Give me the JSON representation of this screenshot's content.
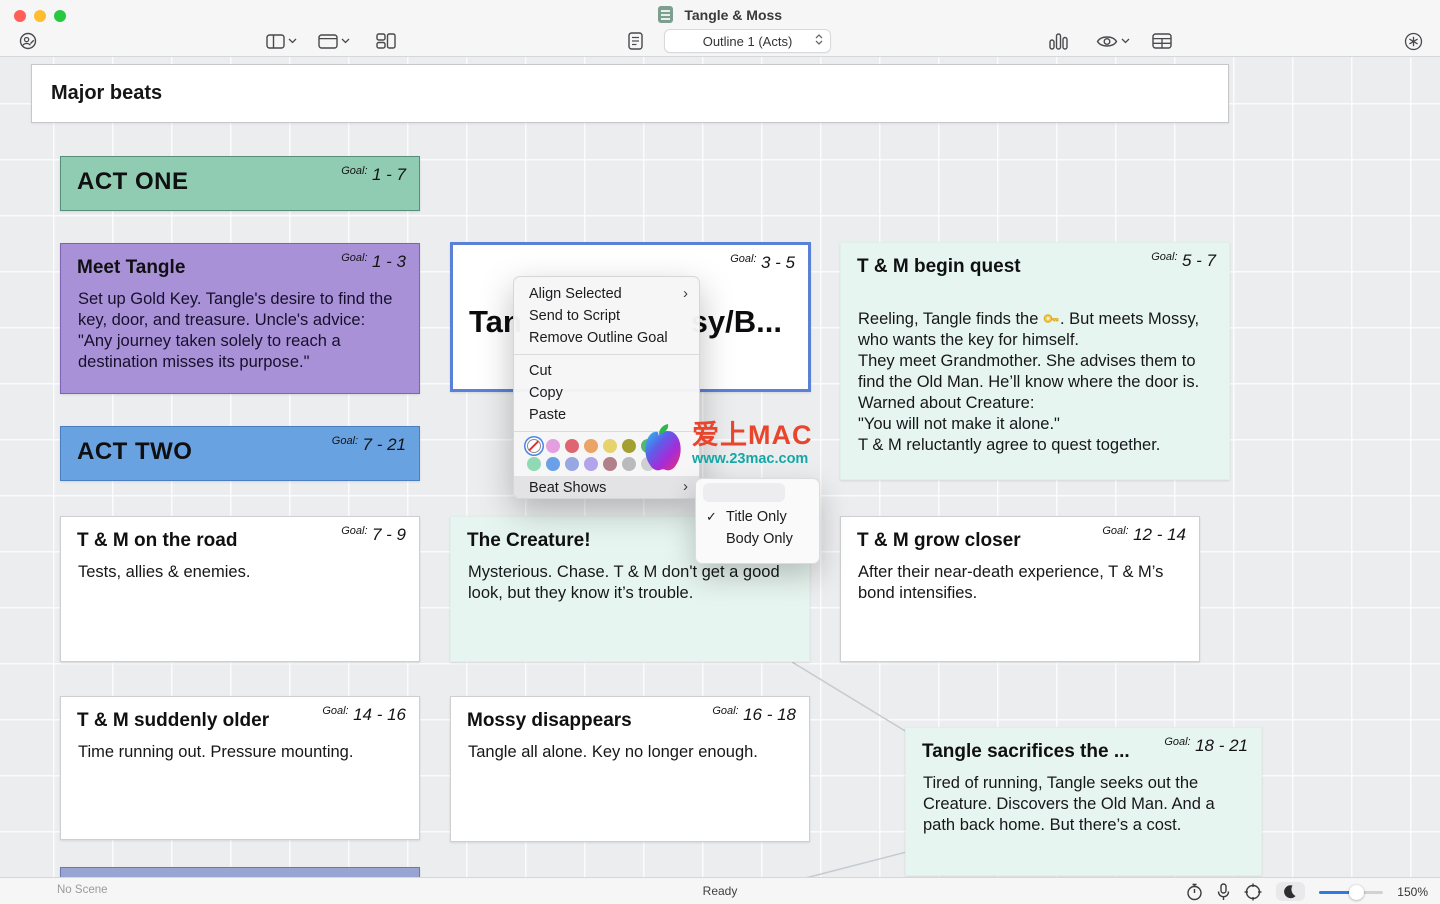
{
  "window": {
    "title": "Tangle & Moss"
  },
  "toolbar": {
    "outline_selector": "Outline 1 (Acts)"
  },
  "board": {
    "header": "Major beats",
    "goal_label": "Goal:",
    "cards": [
      {
        "title": "ACT ONE",
        "goal": "1 - 7"
      },
      {
        "title": "Meet Tangle",
        "goal": "1 - 3",
        "body": "Set up Gold Key. Tangle's desire to find the key, door, and treasure. Uncle's advice: \"Any journey taken solely to reach a destination misses its purpose.\""
      },
      {
        "title_fragment_left": "Tan",
        "title_fragment_right": "sy/B...",
        "goal": "3 - 5"
      },
      {
        "title": "T & M begin quest",
        "goal": "5 - 7",
        "body_before_key": "Reeling, Tangle finds the ",
        "body_after_key": ". But meets Mossy, who wants the key for himself.\nThey meet Grandmother. She advises them to find the Old Man. He’ll know where the door is. Warned about Creature:\n\"You will not make it alone.\"\nT & M reluctantly agree to quest together."
      },
      {
        "title": "ACT TWO",
        "goal": "7 - 21"
      },
      {
        "title": "T & M on the road",
        "goal": "7 - 9",
        "body": "Tests, allies & enemies."
      },
      {
        "title": "The Creature!",
        "body": "Mysterious. Chase. T & M don't get a good look, but they know it’s trouble."
      },
      {
        "title": "T & M grow closer",
        "goal": "12 - 14",
        "body": "After their near-death experience, T & M’s bond intensifies."
      },
      {
        "title": "T & M suddenly older",
        "goal": "14 - 16",
        "body": "Time running out. Pressure mounting."
      },
      {
        "title": "Mossy disappears",
        "goal": "16 - 18",
        "body": "Tangle all alone. Key no longer enough."
      },
      {
        "title": "Tangle sacrifices the ...",
        "goal": "18 - 21",
        "body": "Tired of running, Tangle seeks out the Creature. Discovers the Old Man. And a path back home. But there’s a cost."
      }
    ]
  },
  "context_menu": {
    "items": {
      "align_selected": "Align Selected",
      "send_to_script": "Send to Script",
      "remove_outline_goal": "Remove Outline Goal",
      "cut": "Cut",
      "copy": "Copy",
      "paste": "Paste",
      "beat_shows": "Beat Shows"
    },
    "swatches_row1": [
      "none",
      "#e39fdf",
      "#dd6672",
      "#eca368",
      "#e6d36e",
      "#a3a030",
      "#56b86e"
    ],
    "swatches_row2": [
      "#8fd9b4",
      "#6aa0e8",
      "#97a7e2",
      "#b2a4ea",
      "#b2808a",
      "#b9babc",
      "#cfd0d2"
    ]
  },
  "submenu": {
    "title_only": "Title Only",
    "body_only": "Body Only",
    "checkmark": "✓"
  },
  "watermark": {
    "line1": "爱上MAC",
    "line2": "www.23mac.com"
  },
  "status_bar": {
    "scene": "No Scene",
    "status": "Ready",
    "zoom": "150%"
  },
  "colors": {
    "act_one_fill": "#8fccb2",
    "act_two_fill": "#69a2e1",
    "beat_purple_fill": "#a991d8",
    "beat_mint_fill": "#e7f5f0",
    "selection_border": "#5b80d8",
    "slider_accent": "#2f7ae0"
  }
}
